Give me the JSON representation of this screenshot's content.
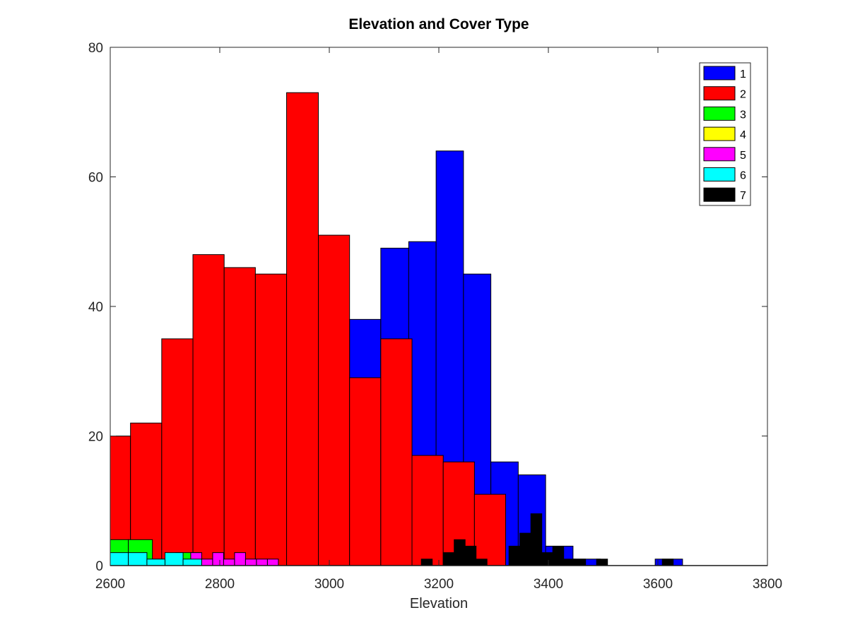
{
  "chart_data": {
    "type": "bar",
    "title": "Elevation and Cover Type",
    "xlabel": "Elevation",
    "ylabel": "",
    "xlim": [
      2600,
      3800
    ],
    "ylim": [
      0,
      80
    ],
    "xticks": [
      2600,
      2800,
      3000,
      3200,
      3400,
      3600,
      3800
    ],
    "yticks": [
      0,
      20,
      40,
      60,
      80
    ],
    "grid": false,
    "legend_position": "top-right",
    "series": [
      {
        "name": "1",
        "color": "#0000ff",
        "bins": [
          {
            "x0": 3037,
            "x1": 3094,
            "value": 38
          },
          {
            "x0": 3094,
            "x1": 3145,
            "value": 49
          },
          {
            "x0": 3145,
            "x1": 3195,
            "value": 50
          },
          {
            "x0": 3195,
            "x1": 3245,
            "value": 64
          },
          {
            "x0": 3245,
            "x1": 3295,
            "value": 45
          },
          {
            "x0": 3295,
            "x1": 3345,
            "value": 16
          },
          {
            "x0": 3345,
            "x1": 3395,
            "value": 14
          },
          {
            "x0": 3395,
            "x1": 3445,
            "value": 3
          },
          {
            "x0": 3445,
            "x1": 3495,
            "value": 1
          },
          {
            "x0": 3595,
            "x1": 3645,
            "value": 1
          }
        ]
      },
      {
        "name": "2",
        "color": "#ff0000",
        "bins": [
          {
            "x0": 2600,
            "x1": 2637,
            "value": 20
          },
          {
            "x0": 2637,
            "x1": 2694,
            "value": 22
          },
          {
            "x0": 2694,
            "x1": 2751,
            "value": 35
          },
          {
            "x0": 2751,
            "x1": 2808,
            "value": 48
          },
          {
            "x0": 2808,
            "x1": 2865,
            "value": 46
          },
          {
            "x0": 2865,
            "x1": 2922,
            "value": 45
          },
          {
            "x0": 2922,
            "x1": 2980,
            "value": 73
          },
          {
            "x0": 2980,
            "x1": 3037,
            "value": 51
          },
          {
            "x0": 3037,
            "x1": 3094,
            "value": 29
          },
          {
            "x0": 3094,
            "x1": 3151,
            "value": 35
          },
          {
            "x0": 3151,
            "x1": 3208,
            "value": 17
          },
          {
            "x0": 3208,
            "x1": 3265,
            "value": 16
          },
          {
            "x0": 3265,
            "x1": 3322,
            "value": 11
          }
        ]
      },
      {
        "name": "3",
        "color": "#00ff00",
        "bins": [
          {
            "x0": 2600,
            "x1": 2633,
            "value": 4
          },
          {
            "x0": 2633,
            "x1": 2677,
            "value": 4
          },
          {
            "x0": 2677,
            "x1": 2720,
            "value": 1
          },
          {
            "x0": 2720,
            "x1": 2763,
            "value": 2
          }
        ]
      },
      {
        "name": "4",
        "color": "#ffff00",
        "bins": []
      },
      {
        "name": "5",
        "color": "#ff00ff",
        "bins": [
          {
            "x0": 2747,
            "x1": 2767,
            "value": 2
          },
          {
            "x0": 2767,
            "x1": 2787,
            "value": 1
          },
          {
            "x0": 2787,
            "x1": 2807,
            "value": 2
          },
          {
            "x0": 2807,
            "x1": 2827,
            "value": 1
          },
          {
            "x0": 2827,
            "x1": 2847,
            "value": 2
          },
          {
            "x0": 2847,
            "x1": 2867,
            "value": 1
          },
          {
            "x0": 2867,
            "x1": 2887,
            "value": 1
          },
          {
            "x0": 2887,
            "x1": 2907,
            "value": 1
          }
        ]
      },
      {
        "name": "6",
        "color": "#00ffff",
        "bins": [
          {
            "x0": 2600,
            "x1": 2633,
            "value": 2
          },
          {
            "x0": 2633,
            "x1": 2667,
            "value": 2
          },
          {
            "x0": 2667,
            "x1": 2700,
            "value": 1
          },
          {
            "x0": 2700,
            "x1": 2733,
            "value": 2
          },
          {
            "x0": 2733,
            "x1": 2767,
            "value": 1
          }
        ]
      },
      {
        "name": "7",
        "color": "#000000",
        "bins": [
          {
            "x0": 3168,
            "x1": 3188,
            "value": 1
          },
          {
            "x0": 3208,
            "x1": 3228,
            "value": 2
          },
          {
            "x0": 3228,
            "x1": 3248,
            "value": 4
          },
          {
            "x0": 3248,
            "x1": 3268,
            "value": 3
          },
          {
            "x0": 3268,
            "x1": 3288,
            "value": 1
          },
          {
            "x0": 3328,
            "x1": 3348,
            "value": 3
          },
          {
            "x0": 3348,
            "x1": 3368,
            "value": 5
          },
          {
            "x0": 3368,
            "x1": 3388,
            "value": 8
          },
          {
            "x0": 3388,
            "x1": 3408,
            "value": 2
          },
          {
            "x0": 3408,
            "x1": 3428,
            "value": 3
          },
          {
            "x0": 3428,
            "x1": 3448,
            "value": 1
          },
          {
            "x0": 3448,
            "x1": 3468,
            "value": 1
          },
          {
            "x0": 3488,
            "x1": 3508,
            "value": 1
          },
          {
            "x0": 3608,
            "x1": 3628,
            "value": 1
          }
        ]
      }
    ]
  }
}
